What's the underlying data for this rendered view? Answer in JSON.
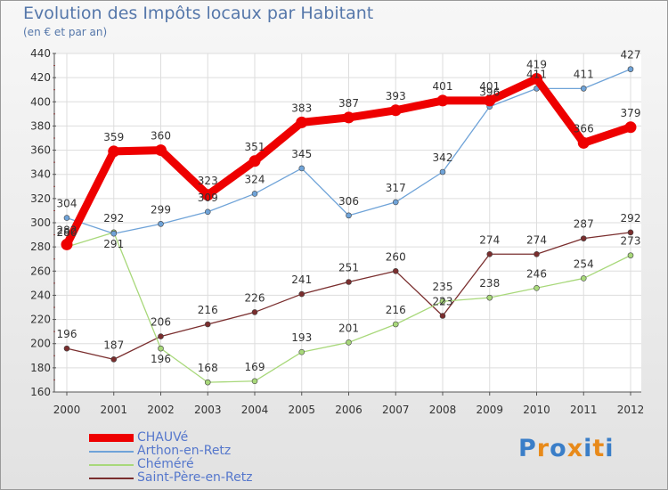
{
  "chart_data": {
    "type": "line",
    "title": "Evolution des Impôts locaux par Habitant",
    "subtitle": "(en € et par an)",
    "xlabel": "",
    "ylabel": "",
    "ylim": [
      160,
      440
    ],
    "yticks": [
      160,
      180,
      200,
      220,
      240,
      260,
      280,
      300,
      320,
      340,
      360,
      380,
      400,
      420,
      440
    ],
    "x": [
      "2000",
      "2001",
      "2002",
      "2003",
      "2004",
      "2005",
      "2006",
      "2007",
      "2008",
      "2009",
      "2010",
      "2011",
      "2012"
    ],
    "legend_position": "bottom-left",
    "grid": true,
    "series": [
      {
        "name": "CHAUVé",
        "color": "#ee0000",
        "values": [
          282,
          359,
          360,
          323,
          351,
          383,
          387,
          393,
          401,
          401,
          419,
          366,
          379
        ]
      },
      {
        "name": "Arthon-en-Retz",
        "color": "#6fa3d8",
        "values": [
          304,
          291,
          299,
          309,
          324,
          345,
          306,
          317,
          342,
          396,
          411,
          411,
          427
        ]
      },
      {
        "name": "Chéméré",
        "color": "#a8d87a",
        "values": [
          280,
          292,
          196,
          168,
          169,
          193,
          201,
          216,
          235,
          238,
          246,
          254,
          273
        ]
      },
      {
        "name": "Saint-Père-en-Retz",
        "color": "#7a2e2e",
        "values": [
          196,
          187,
          206,
          216,
          226,
          241,
          251,
          260,
          223,
          274,
          274,
          287,
          292
        ]
      }
    ]
  },
  "branding": {
    "logo_text": "Proxiti",
    "letters": [
      "P",
      "r",
      "o",
      "x",
      "i",
      "t",
      "i"
    ],
    "letter_colors": [
      "#3a7ec8",
      "#e88a1a",
      "#3a7ec8",
      "#e88a1a",
      "#3a7ec8",
      "#e88a1a",
      "#3a7ec8"
    ]
  }
}
